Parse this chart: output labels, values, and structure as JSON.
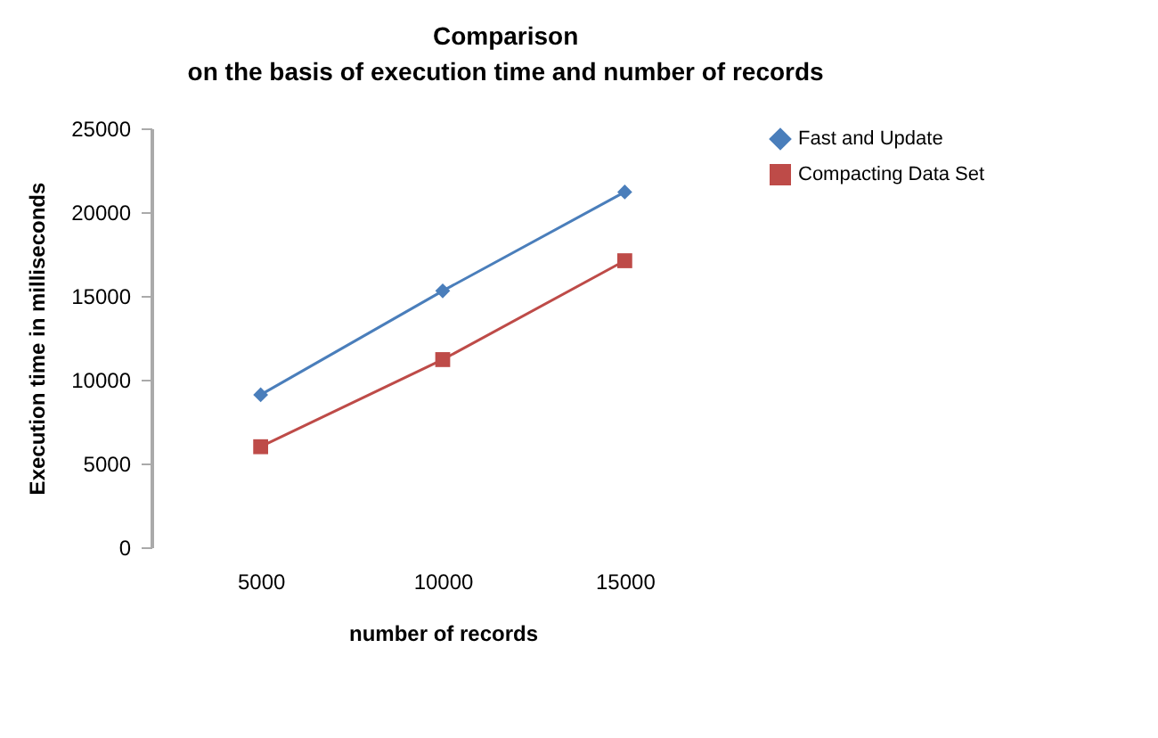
{
  "chart_data": {
    "type": "line",
    "title": "Comparison",
    "subtitle": "on the basis of execution time and number of records",
    "xlabel": "number of records",
    "ylabel": "Execution time in milliseconds",
    "categories": [
      "5000",
      "10000",
      "15000"
    ],
    "series": [
      {
        "name": "Fast and Update",
        "color": "#4a7ebb",
        "marker": "diamond",
        "values": [
          9100,
          15300,
          21200
        ]
      },
      {
        "name": "Compacting Data Set",
        "color": "#be4b48",
        "marker": "square",
        "values": [
          6000,
          11200,
          17100
        ]
      }
    ],
    "ylim": [
      0,
      25000
    ],
    "yticks": [
      0,
      5000,
      10000,
      15000,
      20000,
      25000
    ],
    "grid": false,
    "legend": "right"
  }
}
